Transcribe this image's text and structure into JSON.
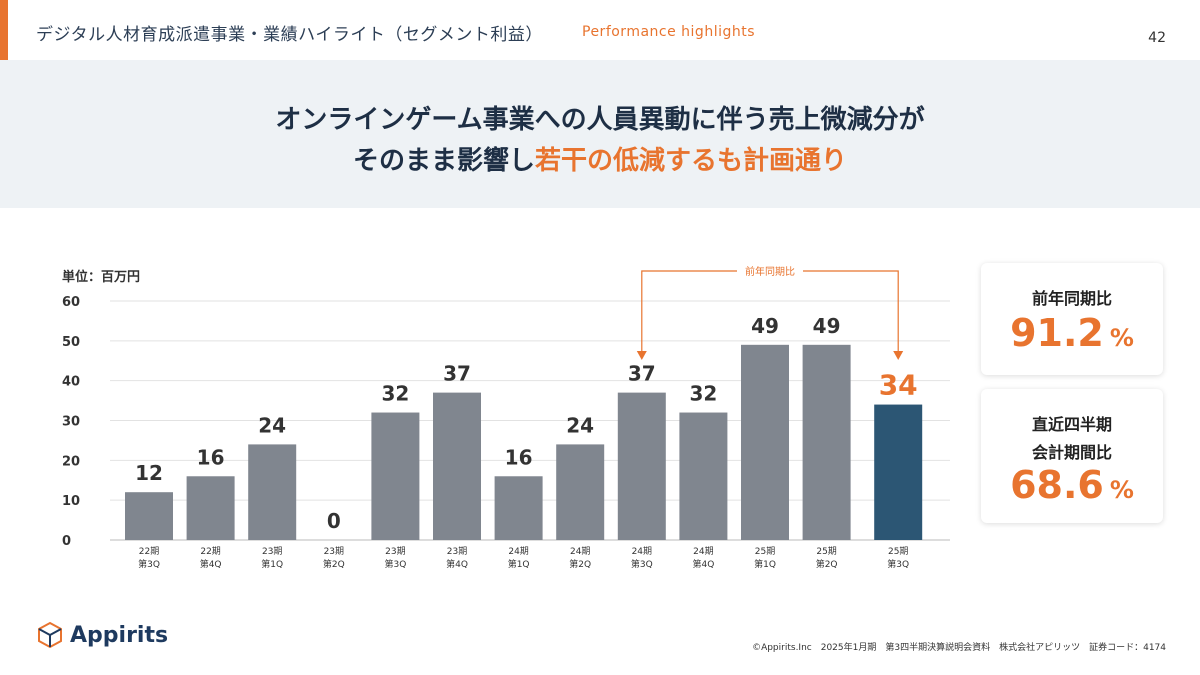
{
  "header": {
    "title": "デジタル人材育成派遣事業・業績ハイライト（セグメント利益）",
    "subtitle": "Performance highlights",
    "page_number": "42"
  },
  "headline": {
    "line1": "オンラインゲーム事業への人員異動に伴う売上微減分が",
    "line2_prefix": "そのまま影響し",
    "line2_highlight": "若干の低減するも計画通り"
  },
  "chart_data": {
    "type": "bar",
    "unit_label": "単位：百万円",
    "ylim": [
      0,
      60
    ],
    "yticks": [
      "0",
      "10",
      "20",
      "30",
      "40",
      "50",
      "60"
    ],
    "categories": [
      {
        "line1": "22期",
        "line2": "第3Q"
      },
      {
        "line1": "22期",
        "line2": "第4Q"
      },
      {
        "line1": "23期",
        "line2": "第1Q"
      },
      {
        "line1": "23期",
        "line2": "第2Q"
      },
      {
        "line1": "23期",
        "line2": "第3Q"
      },
      {
        "line1": "23期",
        "line2": "第4Q"
      },
      {
        "line1": "24期",
        "line2": "第1Q"
      },
      {
        "line1": "24期",
        "line2": "第2Q"
      },
      {
        "line1": "24期",
        "line2": "第3Q"
      },
      {
        "line1": "24期",
        "line2": "第4Q"
      },
      {
        "line1": "25期",
        "line2": "第1Q"
      },
      {
        "line1": "25期",
        "line2": "第2Q"
      },
      {
        "line1": "25期",
        "line2": "第3Q"
      }
    ],
    "values": [
      12,
      16,
      24,
      0,
      32,
      37,
      16,
      24,
      37,
      32,
      49,
      49,
      34
    ],
    "highlight_index": 12,
    "bar_color": "#80868f",
    "highlight_color": "#2c5674",
    "highlight_label_color": "#e8742f",
    "comparison": {
      "label": "前年同期比",
      "from_index": 8,
      "to_index": 12
    }
  },
  "cards": [
    {
      "label": "前年同期比",
      "value": "91.2",
      "unit": "%"
    },
    {
      "label_line1": "直近四半期",
      "label_line2": "会計期間比",
      "value": "68.6",
      "unit": "%"
    }
  ],
  "logo": {
    "text": "Appirits",
    "icon": "cube-logo-icon"
  },
  "footer": {
    "text": "©Appirits.Inc　2025年1月期　第3四半期決算説明会資料　株式会社アピリッツ　証券コード：4174"
  }
}
